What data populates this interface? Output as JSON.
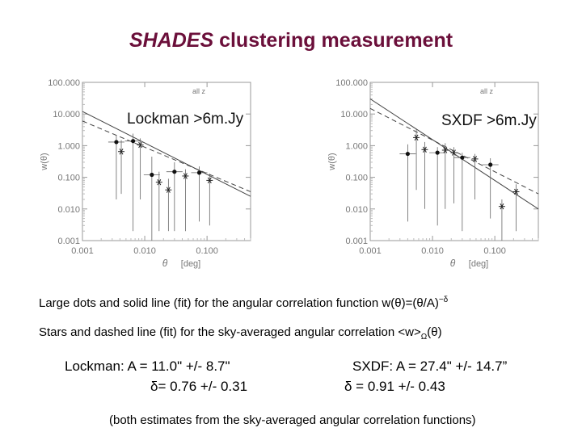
{
  "title": {
    "italic": "SHADES",
    "rest": " clustering measurement"
  },
  "charts": [
    {
      "name": "Lockman",
      "label": "Lockman >6m.Jy",
      "inset": "all z",
      "ylabel": "w(θ)",
      "xlabel_theta": "θ",
      "xlabel_unit": "[deg]",
      "yticks": [
        "100.000",
        "10.000",
        "1.000",
        "0.100",
        "0.010",
        "0.001"
      ],
      "xticks": [
        "0.001",
        "0.010",
        "0.100"
      ],
      "xlim": [
        0.001,
        0.5
      ],
      "ylim": [
        0.001,
        100
      ],
      "dots": [
        {
          "x": 0.0035,
          "y": 1.3,
          "ylo": 0.02,
          "yhi": 2.1
        },
        {
          "x": 0.0065,
          "y": 1.4,
          "ylo": 0.002,
          "yhi": 2.4
        },
        {
          "x": 0.013,
          "y": 0.12,
          "ylo": 0.001,
          "yhi": 0.45
        },
        {
          "x": 0.03,
          "y": 0.15,
          "ylo": 0.002,
          "yhi": 0.3
        },
        {
          "x": 0.075,
          "y": 0.14,
          "ylo": 0.004,
          "yhi": 0.22
        }
      ],
      "stars": [
        {
          "x": 0.0042,
          "y": 0.65,
          "ylo": 0.03,
          "yhi": 1.5
        },
        {
          "x": 0.0085,
          "y": 1.05,
          "ylo": 0.02,
          "yhi": 1.7
        },
        {
          "x": 0.017,
          "y": 0.07,
          "ylo": 0.002,
          "yhi": 0.15
        },
        {
          "x": 0.024,
          "y": 0.04,
          "ylo": 0.002,
          "yhi": 0.09
        },
        {
          "x": 0.045,
          "y": 0.11,
          "ylo": 0.002,
          "yhi": 0.18
        },
        {
          "x": 0.11,
          "y": 0.08,
          "ylo": 0.003,
          "yhi": 0.13
        }
      ],
      "solid_fit": [
        [
          0.001,
          12
        ],
        [
          0.5,
          0.025
        ]
      ],
      "dashed_fit": [
        [
          0.001,
          6
        ],
        [
          0.5,
          0.035
        ]
      ]
    },
    {
      "name": "SXDF",
      "label": "SXDF >6m.Jy",
      "inset": "all z",
      "ylabel": "w(θ)",
      "xlabel_theta": "θ",
      "xlabel_unit": "[deg]",
      "yticks": [
        "100.000",
        "10.000",
        "1.000",
        "0.100",
        "0.010",
        "0.001"
      ],
      "xticks": [
        "0.001",
        "0.010",
        "0.100"
      ],
      "xlim": [
        0.001,
        0.5
      ],
      "ylim": [
        0.001,
        100
      ],
      "dots": [
        {
          "x": 0.004,
          "y": 0.55,
          "ylo": 0.004,
          "yhi": 1.1
        },
        {
          "x": 0.012,
          "y": 0.6,
          "ylo": 0.003,
          "yhi": 0.9
        },
        {
          "x": 0.03,
          "y": 0.42,
          "ylo": 0.002,
          "yhi": 0.6
        },
        {
          "x": 0.085,
          "y": 0.25,
          "ylo": 0.005,
          "yhi": 0.4
        }
      ],
      "stars": [
        {
          "x": 0.0055,
          "y": 1.8,
          "ylo": 0.04,
          "yhi": 3.5
        },
        {
          "x": 0.0075,
          "y": 0.75,
          "ylo": 0.01,
          "yhi": 1.3
        },
        {
          "x": 0.016,
          "y": 0.72,
          "ylo": 0.01,
          "yhi": 1.2
        },
        {
          "x": 0.022,
          "y": 0.6,
          "ylo": 0.015,
          "yhi": 0.9
        },
        {
          "x": 0.048,
          "y": 0.38,
          "ylo": 0.02,
          "yhi": 0.55
        },
        {
          "x": 0.13,
          "y": 0.012,
          "ylo": 0.001,
          "yhi": 0.02
        },
        {
          "x": 0.22,
          "y": 0.035,
          "ylo": 0.002,
          "yhi": 0.06
        }
      ],
      "solid_fit": [
        [
          0.001,
          30
        ],
        [
          0.5,
          0.01
        ]
      ],
      "dashed_fit": [
        [
          0.001,
          15
        ],
        [
          0.5,
          0.03
        ]
      ]
    }
  ],
  "captions": {
    "line1_text": "Large dots and solid line (fit) for the angular correlation function w(θ)=(θ/A)",
    "line1_sup": "−δ",
    "line2_text": "Stars and dashed line (fit) for the sky-averaged angular correlation <w>",
    "line2_sub": "Ω",
    "line2_tail": "(θ)"
  },
  "results": {
    "lockman_a": "Lockman: A = 11.0\" +/- 8.7\"",
    "lockman_d": "δ= 0.76 +/- 0.31",
    "sxdf_a": "SXDF: A = 27.4\" +/- 14.7”",
    "sxdf_d": "δ = 0.91 +/- 0.43"
  },
  "footnote": "(both estimates from the sky-averaged angular correlation functions)"
}
